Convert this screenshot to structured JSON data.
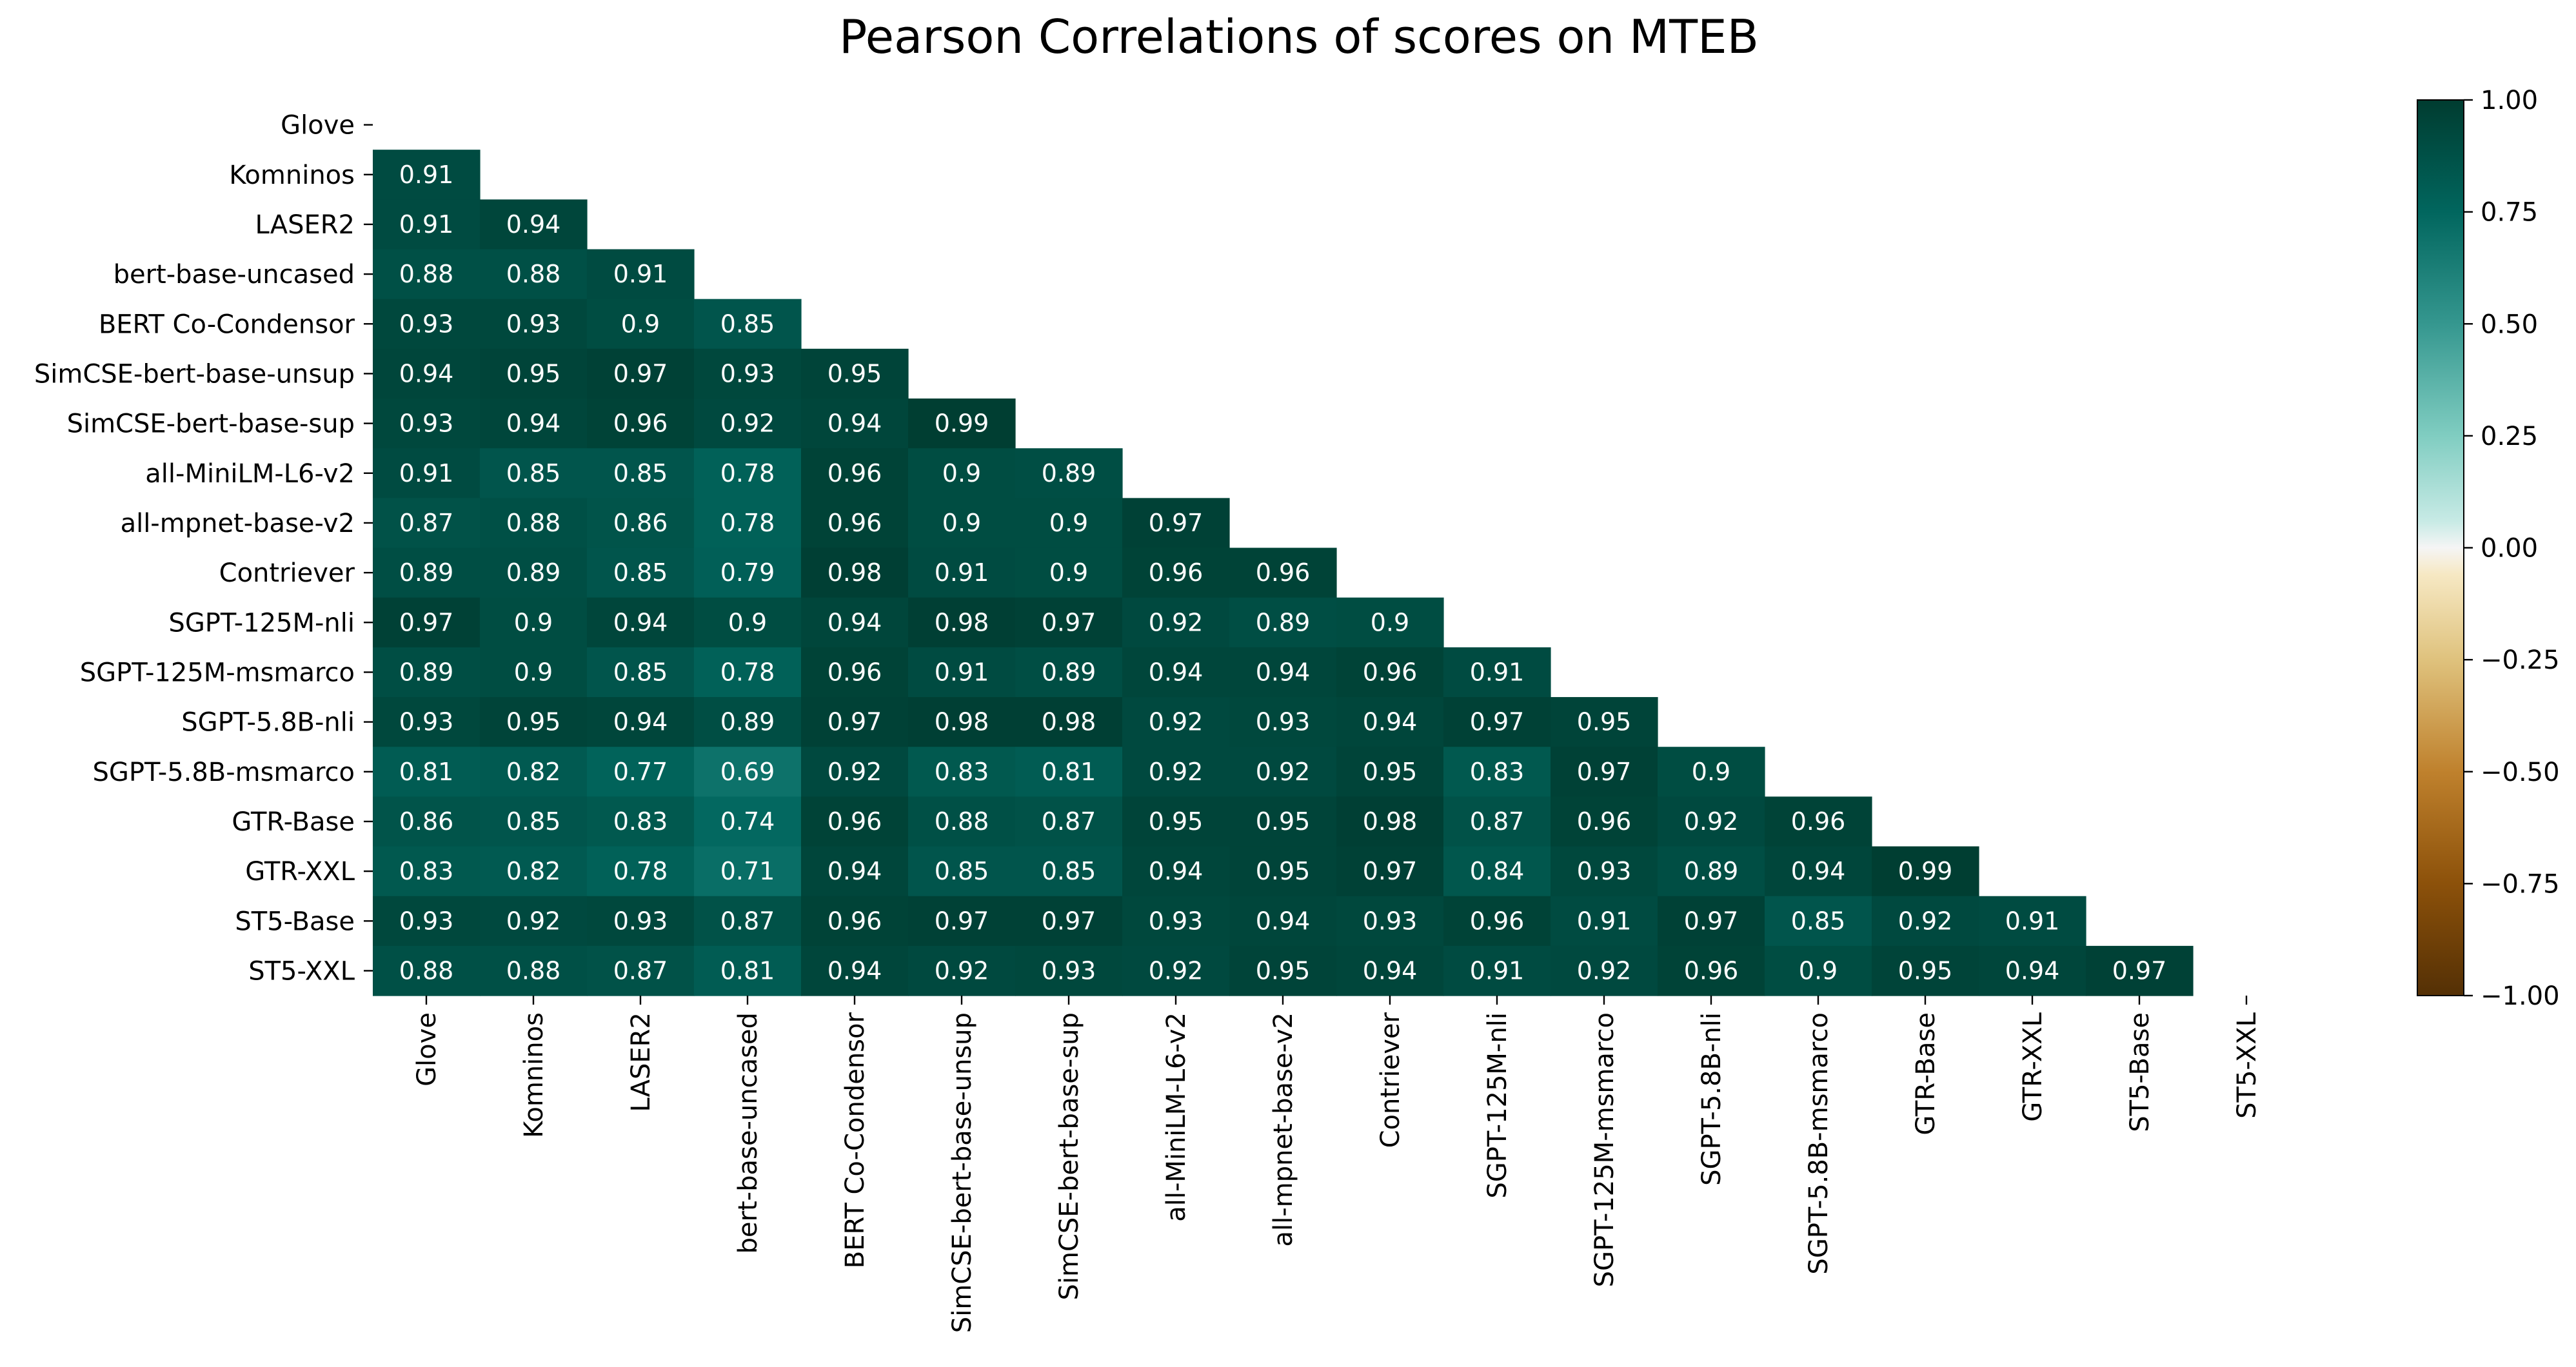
{
  "chart_data": {
    "type": "heatmap",
    "title": "Pearson Correlations of scores on MTEB",
    "xlabel": "",
    "ylabel": "",
    "labels": [
      "Glove",
      "Komninos",
      "LASER2",
      "bert-base-uncased",
      "BERT Co-Condensor",
      "SimCSE-bert-base-unsup",
      "SimCSE-bert-base-sup",
      "all-MiniLM-L6-v2",
      "all-mpnet-base-v2",
      "Contriever",
      "SGPT-125M-nli",
      "SGPT-125M-msmarco",
      "SGPT-5.8B-nli",
      "SGPT-5.8B-msmarco",
      "GTR-Base",
      "GTR-XXL",
      "ST5-Base",
      "ST5-XXL"
    ],
    "mask": "lower-triangle (diagonal and upper triangle hidden)",
    "values": [
      [],
      [
        0.91
      ],
      [
        0.91,
        0.94
      ],
      [
        0.88,
        0.88,
        0.91
      ],
      [
        0.93,
        0.93,
        0.9,
        0.85
      ],
      [
        0.94,
        0.95,
        0.97,
        0.93,
        0.95
      ],
      [
        0.93,
        0.94,
        0.96,
        0.92,
        0.94,
        0.99
      ],
      [
        0.91,
        0.85,
        0.85,
        0.78,
        0.96,
        0.9,
        0.89
      ],
      [
        0.87,
        0.88,
        0.86,
        0.78,
        0.96,
        0.9,
        0.9,
        0.97
      ],
      [
        0.89,
        0.89,
        0.85,
        0.79,
        0.98,
        0.91,
        0.9,
        0.96,
        0.96
      ],
      [
        0.97,
        0.9,
        0.94,
        0.9,
        0.94,
        0.98,
        0.97,
        0.92,
        0.89,
        0.9
      ],
      [
        0.89,
        0.9,
        0.85,
        0.78,
        0.96,
        0.91,
        0.89,
        0.94,
        0.94,
        0.96,
        0.91
      ],
      [
        0.93,
        0.95,
        0.94,
        0.89,
        0.97,
        0.98,
        0.98,
        0.92,
        0.93,
        0.94,
        0.97,
        0.95
      ],
      [
        0.81,
        0.82,
        0.77,
        0.69,
        0.92,
        0.83,
        0.81,
        0.92,
        0.92,
        0.95,
        0.83,
        0.97,
        0.9
      ],
      [
        0.86,
        0.85,
        0.83,
        0.74,
        0.96,
        0.88,
        0.87,
        0.95,
        0.95,
        0.98,
        0.87,
        0.96,
        0.92,
        0.96
      ],
      [
        0.83,
        0.82,
        0.78,
        0.71,
        0.94,
        0.85,
        0.85,
        0.94,
        0.95,
        0.97,
        0.84,
        0.93,
        0.89,
        0.94,
        0.99
      ],
      [
        0.93,
        0.92,
        0.93,
        0.87,
        0.96,
        0.97,
        0.97,
        0.93,
        0.94,
        0.93,
        0.96,
        0.91,
        0.97,
        0.85,
        0.92,
        0.91
      ],
      [
        0.88,
        0.88,
        0.87,
        0.81,
        0.94,
        0.92,
        0.93,
        0.92,
        0.95,
        0.94,
        0.91,
        0.92,
        0.96,
        0.9,
        0.95,
        0.94,
        0.97
      ]
    ],
    "vmin": -1.0,
    "vmax": 1.0,
    "colormap": "BrBG",
    "colorbar_ticks": [
      "1.00",
      "0.75",
      "0.50",
      "0.25",
      "0.00",
      "−0.25",
      "−0.50",
      "−0.75",
      "−1.00"
    ],
    "colorbar_tick_values": [
      1.0,
      0.75,
      0.5,
      0.25,
      0.0,
      -0.25,
      -0.5,
      -0.75,
      -1.0
    ],
    "colormap_stops": [
      {
        "v": -1.0,
        "color": "#543005"
      },
      {
        "v": -0.75,
        "color": "#8c510a"
      },
      {
        "v": -0.5,
        "color": "#bf812d"
      },
      {
        "v": -0.25,
        "color": "#dfc27d"
      },
      {
        "v": -0.06,
        "color": "#f6e8c3"
      },
      {
        "v": 0.0,
        "color": "#f5f5f5"
      },
      {
        "v": 0.06,
        "color": "#c7eae5"
      },
      {
        "v": 0.25,
        "color": "#80cdc1"
      },
      {
        "v": 0.5,
        "color": "#35978f"
      },
      {
        "v": 0.75,
        "color": "#01665e"
      },
      {
        "v": 1.0,
        "color": "#003c30"
      }
    ],
    "grid": false,
    "legend": "colorbar at right"
  }
}
